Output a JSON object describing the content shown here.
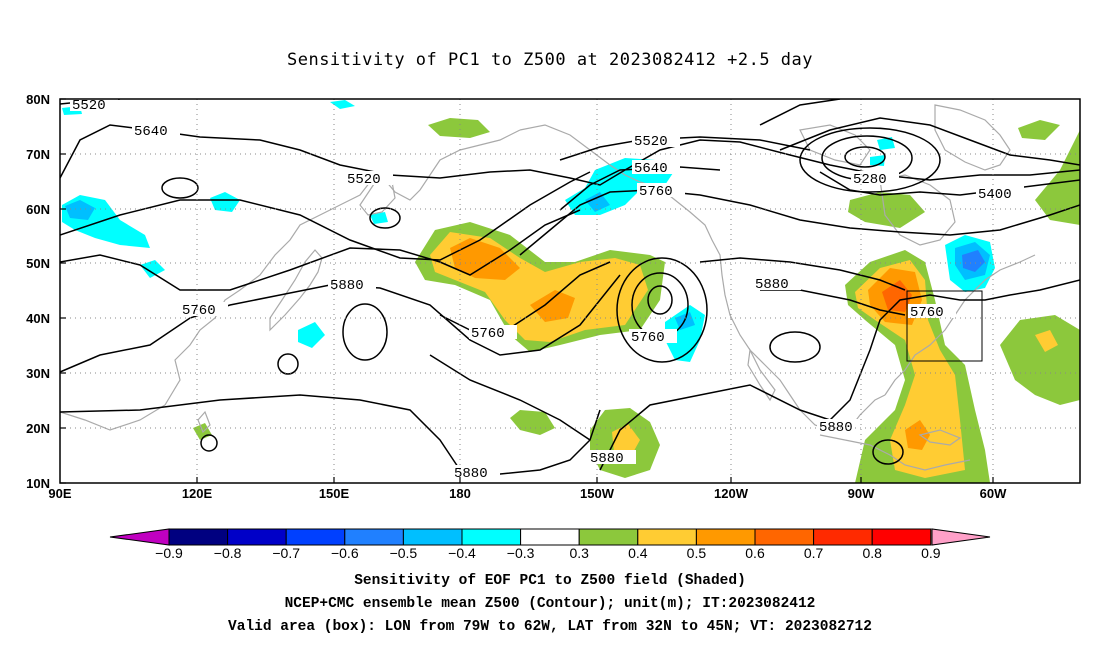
{
  "title": "Sensitivity of PC1 to Z500 at 2023082412 +2.5 day",
  "axes": {
    "lat_labels": [
      "80N",
      "70N",
      "60N",
      "50N",
      "40N",
      "30N",
      "20N",
      "10N"
    ],
    "lon_labels": [
      "90E",
      "120E",
      "150E",
      "180",
      "150W",
      "120W",
      "90W",
      "60W"
    ]
  },
  "contour_labels": {
    "c5520_a": "5520",
    "c5640_a": "5640",
    "c5520_b": "5520",
    "c5520_c": "5520",
    "c5640_b": "5640",
    "c5760_a": "5760",
    "c5280": "5280",
    "c5400": "5400",
    "c5880_a": "5880",
    "c5760_b": "5760",
    "c5760_c": "5760",
    "c5760_d": "5760",
    "c5880_b": "5880",
    "c5760_e": "5760",
    "c5880_c": "5880",
    "c5880_d": "5880",
    "c5880_e": "5880"
  },
  "colorbar": {
    "labels": [
      "−0.9",
      "−0.8",
      "−0.7",
      "−0.6",
      "−0.5",
      "−0.4",
      "−0.3",
      "0.3",
      "0.4",
      "0.5",
      "0.6",
      "0.7",
      "0.8",
      "0.9"
    ],
    "colors": [
      "#000080",
      "#0000c8",
      "#0040ff",
      "#2080ff",
      "#00bfff",
      "#00ffff",
      "#ffffff",
      "#8cc83c",
      "#ffcc33",
      "#ff9900",
      "#ff6600",
      "#ff2a00",
      "#ff0000"
    ],
    "left_tip_color": "#c000c0",
    "right_tip_color": "#ffa0c8"
  },
  "colors": {
    "coast": "#aaaaaa",
    "contour": "#000000",
    "grid": "#888888"
  },
  "captions": {
    "line1": "Sensitivity of EOF PC1 to Z500 field (Shaded)",
    "line2": "NCEP+CMC ensemble mean Z500 (Contour); unit(m); IT:2023082412",
    "line3": "Valid area (box): LON from 79W to 62W, LAT from 32N to 45N; VT: 2023082712"
  }
}
